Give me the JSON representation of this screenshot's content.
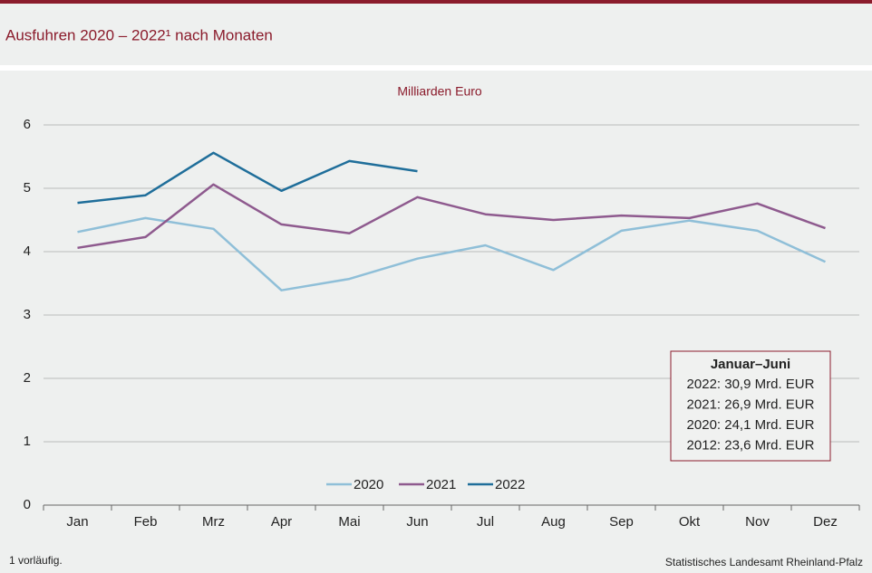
{
  "chart_data": {
    "type": "line",
    "title": "Ausfuhren 2020 – 2022¹ nach Monaten",
    "y_axis_label": "Milliarden Euro",
    "categories": [
      "Jan",
      "Feb",
      "Mrz",
      "Apr",
      "Mai",
      "Jun",
      "Jul",
      "Aug",
      "Sep",
      "Okt",
      "Nov",
      "Dez"
    ],
    "series": [
      {
        "name": "2020",
        "color": "#8fbfd8",
        "values": [
          4.31,
          4.53,
          4.36,
          3.39,
          3.57,
          3.89,
          4.1,
          3.71,
          4.33,
          4.49,
          4.33,
          3.84
        ]
      },
      {
        "name": "2021",
        "color": "#8e5a8e",
        "values": [
          4.06,
          4.23,
          5.06,
          4.43,
          4.29,
          4.86,
          4.59,
          4.5,
          4.57,
          4.53,
          4.76,
          4.37
        ]
      },
      {
        "name": "2022",
        "color": "#1f6e9a",
        "values": [
          4.77,
          4.89,
          5.56,
          4.96,
          5.43,
          5.27,
          null,
          null,
          null,
          null,
          null,
          null
        ]
      }
    ],
    "ylim": [
      0,
      6
    ],
    "yticks": [
      0,
      1,
      2,
      3,
      4,
      5,
      6
    ],
    "grid": true,
    "annotation": {
      "title": "Januar–Juni",
      "lines": [
        "2022: 30,9 Mrd. EUR",
        "2021: 26,9 Mrd. EUR",
        "2020: 24,1 Mrd. EUR",
        "2012: 23,6 Mrd. EUR"
      ]
    },
    "footnote": "1 vorläufig.",
    "source": "Statistisches Landesamt Rheinland-Pfalz"
  }
}
